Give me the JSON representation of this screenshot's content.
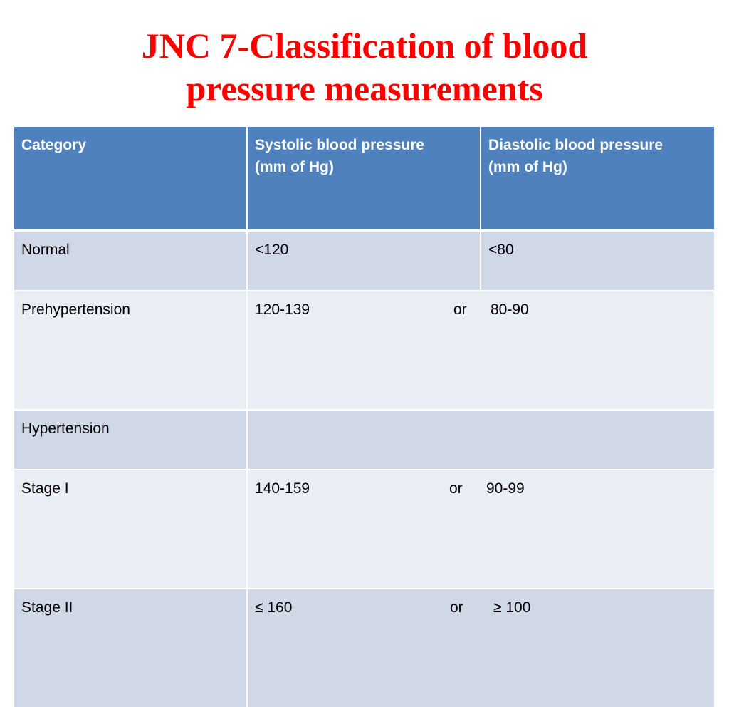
{
  "title": {
    "line1": "JNC 7-Classification of blood",
    "line2": "pressure measurements"
  },
  "table": {
    "headers": [
      "Category",
      "Systolic blood pressure\n(mm of Hg)",
      "Diastolic blood pressure\n(mm of Hg)"
    ],
    "rows": [
      {
        "category": "Normal",
        "systolic": "<120",
        "diastolic": "<80"
      },
      {
        "category": "Prehypertension",
        "systolic": "120-139",
        "connector": "or",
        "diastolic": "80-90"
      },
      {
        "category": "Hypertension",
        "systolic": "",
        "diastolic": ""
      },
      {
        "category": "Stage I",
        "systolic": "140-159",
        "connector": "or",
        "diastolic": "90-99"
      },
      {
        "category": "Stage II",
        "systolic": "≤ 160",
        "connector": "or",
        "diastolic": "≥ 100"
      }
    ]
  },
  "colors": {
    "title": "#ff0000",
    "header_bg": "#4f81bd",
    "row_odd_bg": "#d0d8e8",
    "row_even_bg": "#e9edf4"
  }
}
